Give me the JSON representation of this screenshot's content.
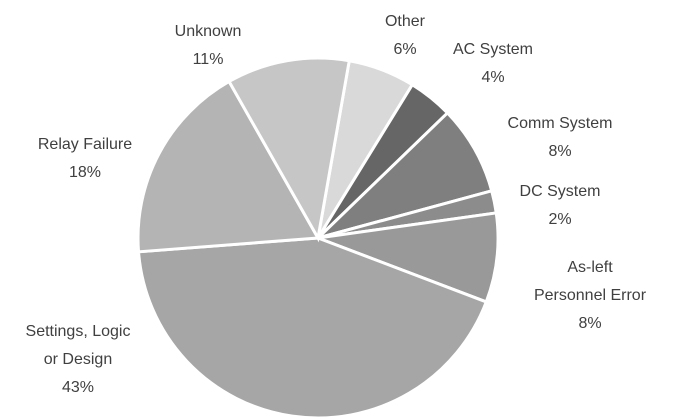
{
  "chart_data": {
    "type": "pie",
    "categories": [
      "Other",
      "AC System",
      "Comm System",
      "DC System",
      "As-left Personnel Error",
      "Settings, Logic or Design",
      "Relay Failure",
      "Unknown"
    ],
    "values": [
      6,
      4,
      8,
      2,
      8,
      43,
      18,
      11
    ],
    "value_labels": [
      "6%",
      "4%",
      "8%",
      "2%",
      "8%",
      "43%",
      "18%",
      "11%"
    ],
    "colors": [
      "#d9d9d9",
      "#666666",
      "#7f7f7f",
      "#8c8c8c",
      "#999999",
      "#a6a6a6",
      "#b4b4b4",
      "#c6c6c6"
    ]
  }
}
